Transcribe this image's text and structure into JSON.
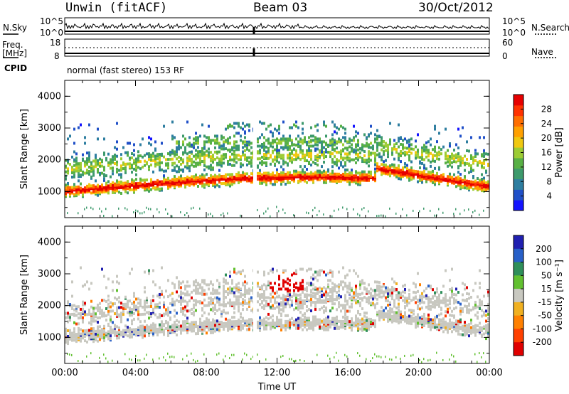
{
  "header": {
    "station": "Unwin (fitACF)",
    "beam": "Beam 03",
    "date": "30/Oct/2012"
  },
  "sky_panel": {
    "left_label": "N.Sky",
    "right_label": "N.Search",
    "left_ticks": [
      "10^5",
      "10^0"
    ],
    "right_ticks": [
      "10^5",
      "10^0"
    ]
  },
  "freq_panel": {
    "left_label_1": "Freq.",
    "left_label_2": "[MHz]",
    "right_label": "Nave",
    "left_ticks": [
      "18",
      "8"
    ],
    "right_ticks": [
      "60",
      "0"
    ]
  },
  "cpid": {
    "label": "CPID",
    "text": "normal (fast stereo) 153 RF"
  },
  "chart_data": [
    {
      "type": "heatmap",
      "name": "power",
      "ylabel": "Slant Range [km]",
      "xlabel": "",
      "ylim": [
        180,
        4500
      ],
      "xlim_hours": [
        0,
        24
      ],
      "y_ticks": [
        "1000",
        "2000",
        "3000",
        "4000"
      ],
      "colorbar": {
        "label": "Power [dB]",
        "ticks": [
          "4",
          "8",
          "12",
          "16",
          "20",
          "24",
          "28"
        ],
        "colors": [
          "#1414ff",
          "#2050c8",
          "#2e7ea0",
          "#3d9a6c",
          "#58b045",
          "#9ccc34",
          "#f0c810",
          "#ffa000",
          "#ff6e00",
          "#ff3200",
          "#e60000"
        ]
      }
    },
    {
      "type": "heatmap",
      "name": "velocity",
      "ylabel": "Slant Range [km]",
      "xlabel": "Time UT",
      "ylim": [
        180,
        4500
      ],
      "xlim_hours": [
        0,
        24
      ],
      "y_ticks": [
        "1000",
        "2000",
        "3000",
        "4000"
      ],
      "x_ticks": [
        "00:00",
        "04:00",
        "08:00",
        "12:00",
        "16:00",
        "20:00",
        "00:00"
      ],
      "colorbar": {
        "label": "Velocity [m s⁻¹]",
        "ticks": [
          "200",
          "100",
          "50",
          "15",
          "-15",
          "-50",
          "-100",
          "-200"
        ],
        "colors": [
          "#2020b0",
          "#2860c8",
          "#2f8f5a",
          "#62c030",
          "#c8c8c0",
          "#f0b020",
          "#ff8000",
          "#ff4000",
          "#e00000"
        ]
      }
    }
  ]
}
